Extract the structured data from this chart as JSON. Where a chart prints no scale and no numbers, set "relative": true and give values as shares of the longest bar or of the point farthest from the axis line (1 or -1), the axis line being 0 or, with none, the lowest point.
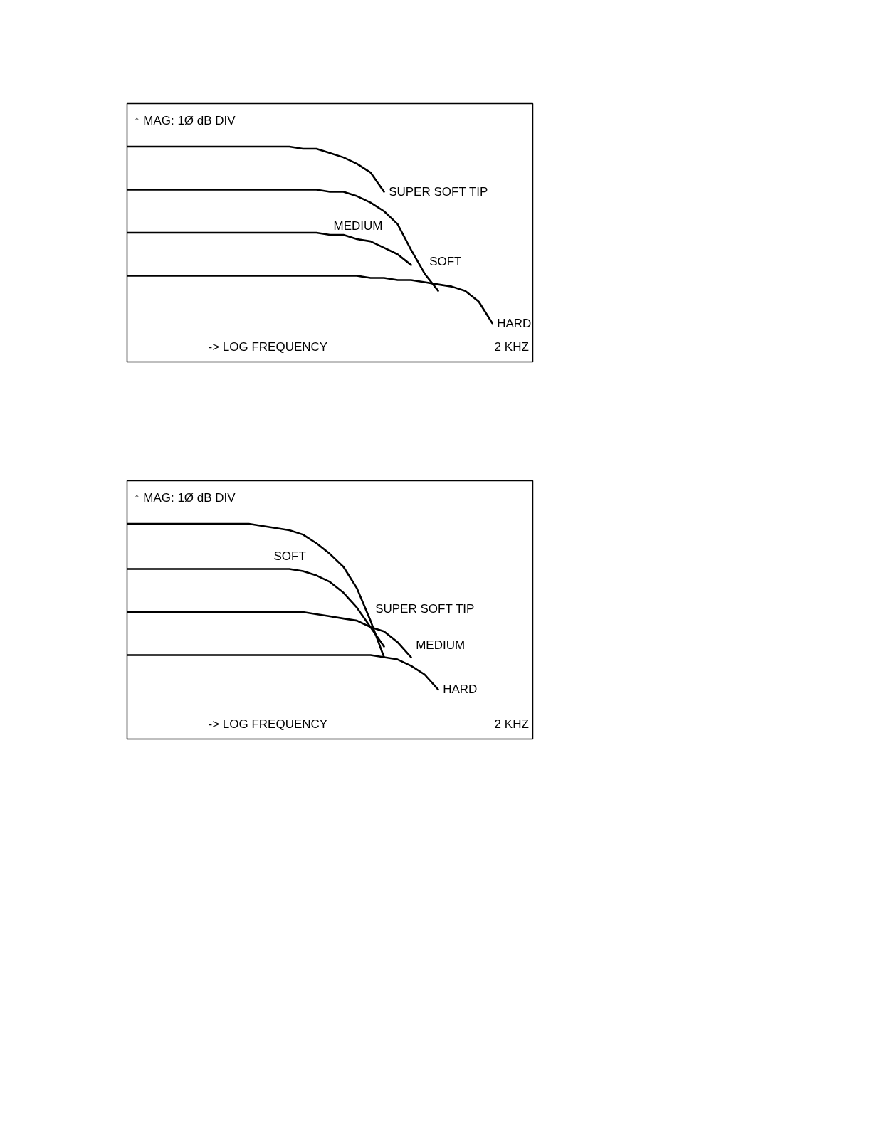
{
  "chart_data": [
    {
      "type": "line",
      "relative": true,
      "categories": [
        null,
        null,
        null,
        null,
        null,
        null,
        null,
        null,
        null,
        null,
        null,
        null,
        null,
        null,
        null,
        null,
        null,
        null,
        null,
        null,
        null,
        null,
        null,
        null,
        null,
        null,
        null,
        null,
        null,
        null,
        null
      ],
      "series": [
        {
          "name": "SUPER SOFT TIP",
          "color": "#000000",
          "values": [
            1.0,
            1.0,
            1.0,
            1.0,
            1.0,
            1.0,
            1.0,
            1.0,
            1.0,
            1.0,
            1.0,
            1.0,
            1.0,
            0.99,
            0.99,
            0.97,
            0.95,
            0.92,
            0.88,
            0.79,
            null,
            null,
            null,
            null,
            null,
            null,
            null,
            null,
            null,
            null,
            null
          ]
        },
        {
          "name": "SOFT",
          "color": "#000000",
          "values": [
            0.8,
            0.8,
            0.8,
            0.8,
            0.8,
            0.8,
            0.8,
            0.8,
            0.8,
            0.8,
            0.8,
            0.8,
            0.8,
            0.8,
            0.8,
            0.79,
            0.79,
            0.77,
            0.74,
            0.7,
            0.64,
            0.52,
            0.41,
            0.33,
            null,
            null,
            null,
            null,
            null,
            null,
            null
          ]
        },
        {
          "name": "MEDIUM",
          "color": "#000000",
          "values": [
            0.6,
            0.6,
            0.6,
            0.6,
            0.6,
            0.6,
            0.6,
            0.6,
            0.6,
            0.6,
            0.6,
            0.6,
            0.6,
            0.6,
            0.6,
            0.59,
            0.59,
            0.57,
            0.56,
            0.53,
            0.5,
            0.45,
            null,
            null,
            null,
            null,
            null,
            null,
            null,
            null,
            null
          ]
        },
        {
          "name": "HARD",
          "color": "#000000",
          "values": [
            0.4,
            0.4,
            0.4,
            0.4,
            0.4,
            0.4,
            0.4,
            0.4,
            0.4,
            0.4,
            0.4,
            0.4,
            0.4,
            0.4,
            0.4,
            0.4,
            0.4,
            0.4,
            0.39,
            0.39,
            0.38,
            0.38,
            0.37,
            0.36,
            0.35,
            0.33,
            0.28,
            0.18,
            null,
            null,
            null
          ]
        }
      ],
      "annotations": [
        "↑ MAG: 1Ø dB DIV",
        "-> LOG FREQUENCY",
        "2 KHZ"
      ]
    },
    {
      "type": "line",
      "relative": true,
      "categories": [
        null,
        null,
        null,
        null,
        null,
        null,
        null,
        null,
        null,
        null,
        null,
        null,
        null,
        null,
        null,
        null,
        null,
        null,
        null,
        null,
        null,
        null,
        null,
        null,
        null,
        null,
        null,
        null,
        null,
        null,
        null
      ],
      "series": [
        {
          "name": "SUPER SOFT TIP",
          "color": "#000000",
          "values": [
            1.0,
            1.0,
            1.0,
            1.0,
            1.0,
            1.0,
            1.0,
            1.0,
            1.0,
            1.0,
            0.99,
            0.98,
            0.97,
            0.95,
            0.91,
            0.86,
            0.8,
            0.7,
            0.55,
            0.38,
            null,
            null,
            null,
            null,
            null,
            null,
            null,
            null,
            null,
            null,
            null
          ]
        },
        {
          "name": "SOFT",
          "color": "#000000",
          "values": [
            0.79,
            0.79,
            0.79,
            0.79,
            0.79,
            0.79,
            0.79,
            0.79,
            0.79,
            0.79,
            0.79,
            0.79,
            0.79,
            0.78,
            0.76,
            0.73,
            0.68,
            0.61,
            0.52,
            0.43,
            null,
            null,
            null,
            null,
            null,
            null,
            null,
            null,
            null,
            null,
            null
          ]
        },
        {
          "name": "MEDIUM",
          "color": "#000000",
          "values": [
            0.59,
            0.59,
            0.59,
            0.59,
            0.59,
            0.59,
            0.59,
            0.59,
            0.59,
            0.59,
            0.59,
            0.59,
            0.59,
            0.59,
            0.58,
            0.57,
            0.56,
            0.55,
            0.52,
            0.5,
            0.45,
            0.38,
            null,
            null,
            null,
            null,
            null,
            null,
            null,
            null,
            null
          ]
        },
        {
          "name": "HARD",
          "color": "#000000",
          "values": [
            0.39,
            0.39,
            0.39,
            0.39,
            0.39,
            0.39,
            0.39,
            0.39,
            0.39,
            0.39,
            0.39,
            0.39,
            0.39,
            0.39,
            0.39,
            0.39,
            0.39,
            0.39,
            0.39,
            0.38,
            0.37,
            0.34,
            0.3,
            0.23,
            null,
            null,
            null,
            null,
            null,
            null,
            null
          ]
        }
      ],
      "annotations": [
        "↑ MAG: 1Ø dB DIV",
        "-> LOG FREQUENCY",
        "2 KHZ"
      ]
    }
  ]
}
